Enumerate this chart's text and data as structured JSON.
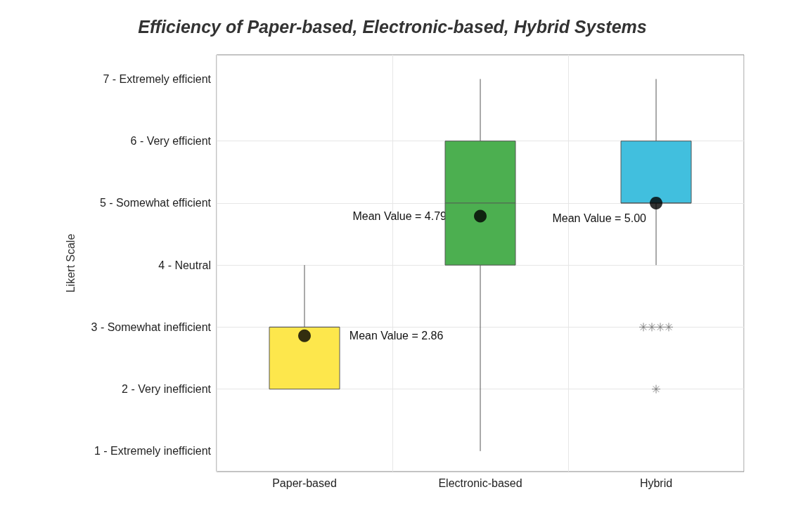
{
  "chart_data": {
    "type": "box",
    "title": "Efficiency of Paper-based, Electronic-based, Hybrid Systems",
    "ylabel": "Likert Scale",
    "categories": [
      "Paper-based",
      "Electronic-based",
      "Hybrid"
    ],
    "colors": [
      "#fde74c",
      "#4caf50",
      "#41bfde"
    ],
    "boxes": [
      {
        "low": 2,
        "q1": 2,
        "median": 3,
        "q3": 3,
        "high": 4,
        "mean": 2.86
      },
      {
        "low": 1,
        "q1": 4,
        "median": 5,
        "q3": 6,
        "high": 7,
        "mean": 4.79
      },
      {
        "low": 4,
        "q1": 5,
        "median": 5,
        "q3": 6,
        "high": 7,
        "mean": 5.0,
        "outliers": [
          3,
          3,
          3,
          3,
          2
        ]
      }
    ],
    "ylim": [
      0.67,
      7.39
    ],
    "yticks": [
      {
        "value": 1,
        "label": "1 - Extremely inefficient"
      },
      {
        "value": 2,
        "label": "2 - Very inefficient"
      },
      {
        "value": 3,
        "label": "3 - Somewhat inefficient"
      },
      {
        "value": 4,
        "label": "4 - Neutral"
      },
      {
        "value": 5,
        "label": "5 - Somewhat efficient"
      },
      {
        "value": 6,
        "label": "6 - Very efficient"
      },
      {
        "value": 7,
        "label": "7 - Extremely efficient"
      }
    ],
    "annotations": [
      "Mean Value = 2.86",
      "Mean Value = 4.79",
      "Mean Value = 5.00"
    ],
    "grid": true,
    "legend": false,
    "marker": "circle"
  }
}
